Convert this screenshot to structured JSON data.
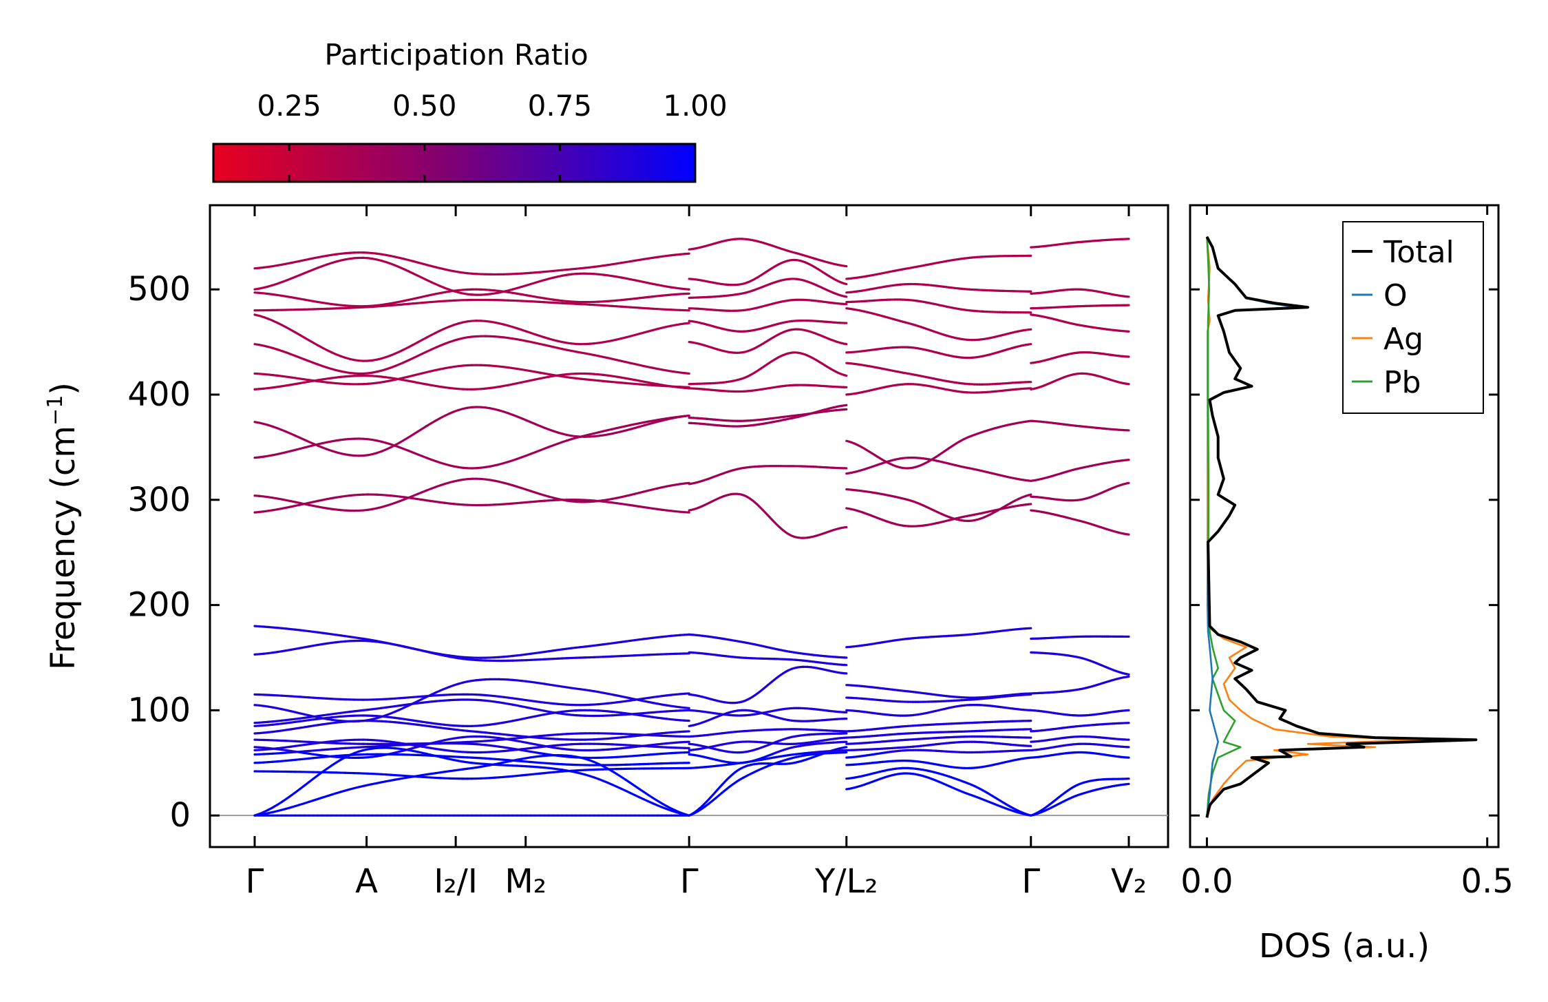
{
  "chart_data": {
    "type": "line",
    "band_structure": {
      "ylabel": "Frequency (cm",
      "ylabel_sup": "−1",
      "ylabel_close": ")",
      "ylim": [
        -30,
        580
      ],
      "yticks": [
        "0",
        "100",
        "200",
        "300",
        "400",
        "500"
      ],
      "ytick_values": [
        0,
        100,
        200,
        300,
        400,
        500
      ],
      "k_labels": [
        {
          "label": "Γ",
          "k": 0.0
        },
        {
          "label": "A",
          "k": 0.128
        },
        {
          "label": "I₂/I",
          "k": 0.23
        },
        {
          "label": "M₂",
          "k": 0.31
        },
        {
          "label": "Γ",
          "k": 0.497
        },
        {
          "label": "Y/L₂",
          "k": 0.677
        },
        {
          "label": "Γ",
          "k": 0.888
        },
        {
          "label": "V₂",
          "k": 1.0
        }
      ],
      "segments": [
        [
          0.0,
          0.497
        ],
        [
          0.497,
          0.677
        ],
        [
          0.677,
          0.888
        ],
        [
          0.888,
          1.0
        ]
      ],
      "colorbar": {
        "title": "Participation Ratio",
        "ticks": [
          "0.25",
          "0.50",
          "0.75",
          "1.00"
        ],
        "tick_values": [
          0.25,
          0.5,
          0.75,
          1.0
        ],
        "range": [
          0.11,
          1.0
        ],
        "colors": [
          "#e8001f",
          "#7d0075",
          "#0000ff"
        ]
      },
      "acoustic_pr": 1.0,
      "low_optical_pr": 0.9,
      "mid_band_pr": 0.4,
      "high_band_pr": 0.35,
      "bands_segment1": [
        [
          0,
          0,
          0,
          0,
          0
        ],
        [
          0,
          28,
          45,
          55,
          0
        ],
        [
          0,
          62,
          50,
          40,
          0
        ],
        [
          42,
          40,
          35,
          43,
          45
        ],
        [
          50,
          58,
          55,
          48,
          50
        ],
        [
          58,
          65,
          68,
          55,
          60
        ],
        [
          62,
          72,
          60,
          68,
          64
        ],
        [
          65,
          55,
          75,
          62,
          70
        ],
        [
          72,
          68,
          70,
          78,
          75
        ],
        [
          78,
          90,
          80,
          72,
          80
        ],
        [
          85,
          95,
          85,
          100,
          90
        ],
        [
          88,
          100,
          110,
          95,
          100
        ],
        [
          105,
          90,
          128,
          120,
          102
        ],
        [
          115,
          110,
          115,
          105,
          116
        ],
        [
          153,
          166,
          148,
          150,
          154
        ],
        [
          180,
          168,
          150,
          160,
          172
        ],
        [
          288,
          305,
          295,
          300,
          288
        ],
        [
          304,
          290,
          320,
          298,
          316
        ],
        [
          340,
          358,
          330,
          360,
          380
        ],
        [
          374,
          342,
          388,
          360,
          380
        ],
        [
          405,
          418,
          405,
          420,
          406
        ],
        [
          420,
          410,
          428,
          415,
          407
        ],
        [
          448,
          420,
          455,
          440,
          420
        ],
        [
          476,
          432,
          470,
          448,
          468
        ],
        [
          480,
          483,
          490,
          486,
          480
        ],
        [
          497,
          484,
          500,
          488,
          496
        ],
        [
          500,
          530,
          495,
          515,
          500
        ],
        [
          520,
          535,
          515,
          520,
          534
        ]
      ],
      "bands_segment2": [
        [
          0,
          35,
          55,
          60
        ],
        [
          0,
          45,
          50,
          65
        ],
        [
          45,
          50,
          58,
          62
        ],
        [
          58,
          50,
          65,
          70
        ],
        [
          62,
          70,
          68,
          74
        ],
        [
          68,
          60,
          75,
          78
        ],
        [
          75,
          80,
          82,
          80
        ],
        [
          85,
          100,
          90,
          92
        ],
        [
          100,
          95,
          102,
          98
        ],
        [
          115,
          108,
          140,
          135
        ],
        [
          155,
          150,
          148,
          143
        ],
        [
          172,
          165,
          155,
          150
        ],
        [
          290,
          305,
          265,
          274
        ],
        [
          315,
          330,
          332,
          330
        ],
        [
          373,
          370,
          378,
          390
        ],
        [
          378,
          375,
          380,
          386
        ],
        [
          406,
          403,
          409,
          407
        ],
        [
          410,
          415,
          440,
          418
        ],
        [
          450,
          440,
          462,
          448
        ],
        [
          470,
          460,
          470,
          468
        ],
        [
          482,
          480,
          490,
          486
        ],
        [
          492,
          496,
          510,
          493
        ],
        [
          510,
          505,
          528,
          505
        ],
        [
          538,
          548,
          535,
          522
        ]
      ],
      "bands_segment3": [
        [
          25,
          40,
          20,
          0
        ],
        [
          35,
          45,
          30,
          0
        ],
        [
          48,
          52,
          45,
          55
        ],
        [
          55,
          62,
          60,
          62
        ],
        [
          62,
          65,
          70,
          66
        ],
        [
          68,
          72,
          75,
          74
        ],
        [
          74,
          78,
          80,
          82
        ],
        [
          80,
          85,
          88,
          90
        ],
        [
          100,
          95,
          105,
          100
        ],
        [
          112,
          108,
          110,
          115
        ],
        [
          124,
          118,
          112,
          116
        ],
        [
          160,
          168,
          172,
          178
        ],
        [
          292,
          275,
          285,
          296
        ],
        [
          310,
          300,
          280,
          305
        ],
        [
          325,
          340,
          330,
          318
        ],
        [
          356,
          330,
          360,
          375
        ],
        [
          400,
          410,
          402,
          406
        ],
        [
          430,
          420,
          410,
          412
        ],
        [
          440,
          445,
          435,
          448
        ],
        [
          482,
          468,
          452,
          462
        ],
        [
          488,
          490,
          480,
          478
        ],
        [
          497,
          505,
          500,
          498
        ],
        [
          510,
          520,
          530,
          532
        ]
      ],
      "bands_segment4": [
        [
          0,
          20,
          30
        ],
        [
          0,
          30,
          35
        ],
        [
          55,
          60,
          55
        ],
        [
          62,
          68,
          65
        ],
        [
          70,
          75,
          72
        ],
        [
          80,
          85,
          88
        ],
        [
          100,
          95,
          100
        ],
        [
          116,
          120,
          132
        ],
        [
          155,
          150,
          134
        ],
        [
          168,
          170,
          170
        ],
        [
          290,
          280,
          267
        ],
        [
          303,
          300,
          316
        ],
        [
          318,
          330,
          338
        ],
        [
          375,
          370,
          366
        ],
        [
          405,
          420,
          410
        ],
        [
          430,
          440,
          436
        ],
        [
          476,
          466,
          460
        ],
        [
          482,
          484,
          485
        ],
        [
          496,
          500,
          493
        ],
        [
          540,
          545,
          548
        ]
      ]
    },
    "dos": {
      "xlabel": "DOS (a.u.)",
      "xlim": [
        -0.03,
        0.52
      ],
      "xticks": [
        "0.0",
        "0.5"
      ],
      "xtick_values": [
        0.0,
        0.5
      ],
      "legend_position": "upper-right",
      "series": [
        {
          "name": "Total",
          "color": "#000000",
          "points": [
            [
              0,
              -2
            ],
            [
              0.005,
              10
            ],
            [
              0.03,
              25
            ],
            [
              0.06,
              30
            ],
            [
              0.09,
              42
            ],
            [
              0.11,
              50
            ],
            [
              0.08,
              55
            ],
            [
              0.15,
              56
            ],
            [
              0.13,
              62
            ],
            [
              0.28,
              65
            ],
            [
              0.25,
              68
            ],
            [
              0.48,
              72
            ],
            [
              0.3,
              74
            ],
            [
              0.2,
              78
            ],
            [
              0.16,
              85
            ],
            [
              0.13,
              92
            ],
            [
              0.14,
              100
            ],
            [
              0.09,
              108
            ],
            [
              0.07,
              120
            ],
            [
              0.05,
              130
            ],
            [
              0.08,
              138
            ],
            [
              0.05,
              145
            ],
            [
              0.06,
              150
            ],
            [
              0.09,
              158
            ],
            [
              0.06,
              165
            ],
            [
              0.02,
              172
            ],
            [
              0.005,
              180
            ],
            [
              0.002,
              260
            ],
            [
              0.02,
              270
            ],
            [
              0.04,
              285
            ],
            [
              0.05,
              295
            ],
            [
              0.02,
              305
            ],
            [
              0.03,
              320
            ],
            [
              0.02,
              340
            ],
            [
              0.02,
              360
            ],
            [
              0.01,
              380
            ],
            [
              0.005,
              395
            ],
            [
              0.03,
              402
            ],
            [
              0.08,
              408
            ],
            [
              0.05,
              415
            ],
            [
              0.06,
              425
            ],
            [
              0.04,
              440
            ],
            [
              0.03,
              460
            ],
            [
              0.02,
              475
            ],
            [
              0.05,
              480
            ],
            [
              0.18,
              483
            ],
            [
              0.12,
              487
            ],
            [
              0.07,
              492
            ],
            [
              0.05,
              505
            ],
            [
              0.02,
              520
            ],
            [
              0.01,
              540
            ],
            [
              0,
              550
            ]
          ]
        },
        {
          "name": "O",
          "color": "#1f77b4",
          "points": [
            [
              0,
              -2
            ],
            [
              0.005,
              20
            ],
            [
              0.01,
              50
            ],
            [
              0.02,
              70
            ],
            [
              0.005,
              100
            ],
            [
              0.01,
              130
            ],
            [
              0.005,
              160
            ],
            [
              0.002,
              175
            ],
            [
              0.001,
              200
            ],
            [
              0.002,
              260
            ],
            [
              0.02,
              270
            ],
            [
              0.04,
              285
            ],
            [
              0.05,
              295
            ],
            [
              0.02,
              305
            ],
            [
              0.03,
              320
            ],
            [
              0.02,
              340
            ],
            [
              0.02,
              360
            ],
            [
              0.01,
              380
            ],
            [
              0.005,
              395
            ],
            [
              0.03,
              402
            ],
            [
              0.08,
              408
            ],
            [
              0.05,
              415
            ],
            [
              0.06,
              425
            ],
            [
              0.04,
              440
            ],
            [
              0.03,
              460
            ],
            [
              0.02,
              475
            ],
            [
              0.05,
              480
            ],
            [
              0.16,
              483
            ],
            [
              0.11,
              487
            ],
            [
              0.07,
              492
            ],
            [
              0.05,
              505
            ],
            [
              0.02,
              520
            ],
            [
              0.01,
              540
            ],
            [
              0,
              550
            ]
          ]
        },
        {
          "name": "Ag",
          "color": "#ff7f0e",
          "points": [
            [
              0,
              -2
            ],
            [
              0.01,
              15
            ],
            [
              0.03,
              30
            ],
            [
              0.05,
              42
            ],
            [
              0.07,
              52
            ],
            [
              0.18,
              58
            ],
            [
              0.12,
              62
            ],
            [
              0.3,
              65
            ],
            [
              0.18,
              68
            ],
            [
              0.38,
              72
            ],
            [
              0.22,
              75
            ],
            [
              0.12,
              82
            ],
            [
              0.08,
              92
            ],
            [
              0.06,
              100
            ],
            [
              0.04,
              110
            ],
            [
              0.03,
              125
            ],
            [
              0.05,
              140
            ],
            [
              0.04,
              150
            ],
            [
              0.07,
              160
            ],
            [
              0.03,
              168
            ],
            [
              0.005,
              178
            ],
            [
              0.001,
              200
            ],
            [
              0.001,
              300
            ],
            [
              0.001,
              460
            ],
            [
              0.005,
              470
            ],
            [
              0.002,
              490
            ],
            [
              0.005,
              520
            ],
            [
              0,
              550
            ]
          ]
        },
        {
          "name": "Pb",
          "color": "#2ca02c",
          "points": [
            [
              0,
              -2
            ],
            [
              0.003,
              20
            ],
            [
              0.01,
              40
            ],
            [
              0.02,
              55
            ],
            [
              0.06,
              65
            ],
            [
              0.03,
              70
            ],
            [
              0.04,
              80
            ],
            [
              0.05,
              90
            ],
            [
              0.03,
              100
            ],
            [
              0.02,
              115
            ],
            [
              0.01,
              130
            ],
            [
              0.02,
              140
            ],
            [
              0.01,
              160
            ],
            [
              0.005,
              175
            ],
            [
              0.002,
              200
            ],
            [
              0.003,
              300
            ],
            [
              0.002,
              400
            ],
            [
              0.002,
              470
            ],
            [
              0.004,
              500
            ],
            [
              0.002,
              530
            ],
            [
              0,
              550
            ]
          ]
        }
      ]
    }
  }
}
